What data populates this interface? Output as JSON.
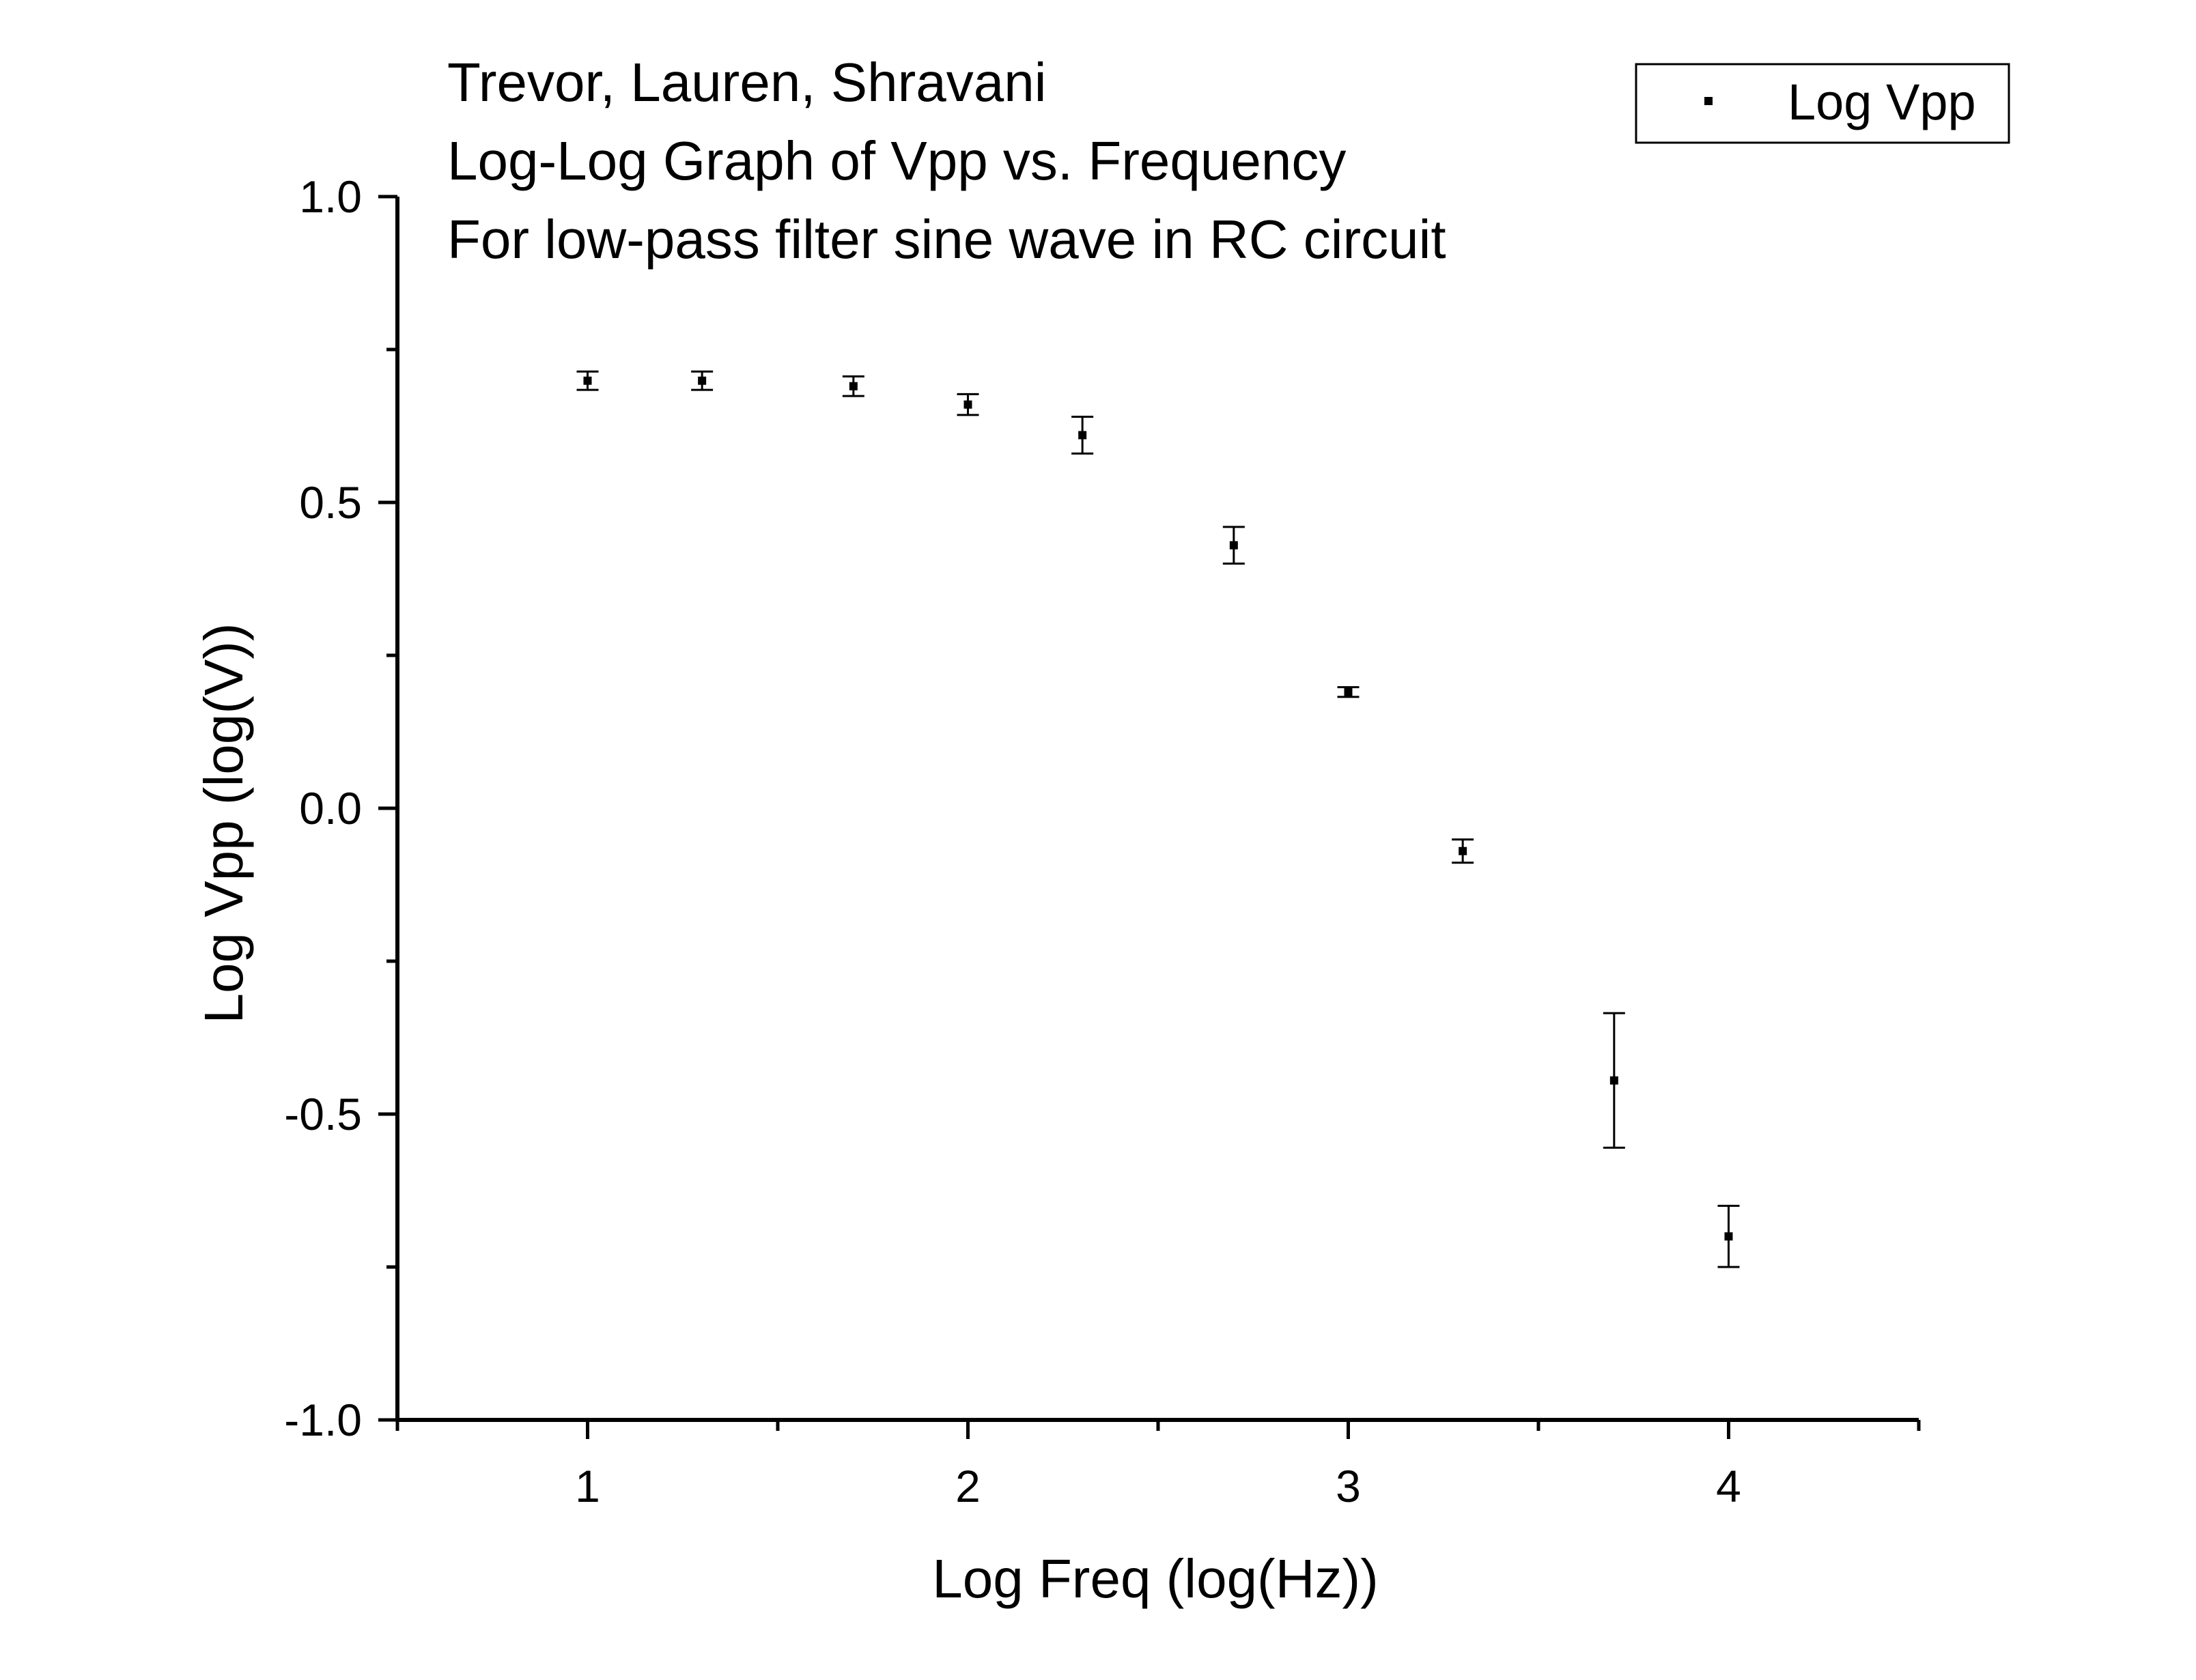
{
  "chart_data": {
    "type": "scatter",
    "title_lines": [
      "Trevor, Lauren, Shravani",
      "Log-Log Graph of Vpp vs. Frequency",
      "For low-pass filter sine wave in RC circuit"
    ],
    "xlabel": "Log Freq (log(Hz))",
    "ylabel": "Log Vpp (log(V))",
    "xlim": [
      0.5,
      4.5
    ],
    "ylim": [
      -1.0,
      1.0
    ],
    "x_ticks": [
      {
        "value": 1,
        "label": "1"
      },
      {
        "value": 2,
        "label": "2"
      },
      {
        "value": 3,
        "label": "3"
      },
      {
        "value": 4,
        "label": "4"
      }
    ],
    "x_minor_ticks": [
      0.5,
      1.5,
      2.5,
      3.5,
      4.5
    ],
    "y_ticks": [
      {
        "value": -1.0,
        "label": "-1.0"
      },
      {
        "value": -0.5,
        "label": "-0.5"
      },
      {
        "value": 0.0,
        "label": "0.0"
      },
      {
        "value": 0.5,
        "label": "0.5"
      },
      {
        "value": 1.0,
        "label": "1.0"
      }
    ],
    "y_minor_ticks": [
      -0.75,
      -0.25,
      0.25,
      0.75
    ],
    "grid": false,
    "legend": {
      "position": "top-right",
      "entries": [
        "Log Vpp"
      ]
    },
    "series": [
      {
        "name": "Log Vpp",
        "color": "#000000",
        "points": [
          {
            "x": 1.0,
            "y": 0.699,
            "err": 0.015
          },
          {
            "x": 1.301,
            "y": 0.699,
            "err": 0.015
          },
          {
            "x": 1.699,
            "y": 0.69,
            "err": 0.016
          },
          {
            "x": 2.0,
            "y": 0.66,
            "err": 0.017
          },
          {
            "x": 2.301,
            "y": 0.61,
            "err": 0.03
          },
          {
            "x": 2.699,
            "y": 0.43,
            "err": 0.03
          },
          {
            "x": 3.0,
            "y": 0.19,
            "err": 0.008
          },
          {
            "x": 3.301,
            "y": -0.07,
            "err": 0.019
          },
          {
            "x": 3.699,
            "y": -0.445,
            "err": 0.11
          },
          {
            "x": 4.0,
            "y": -0.7,
            "err": 0.05
          }
        ]
      }
    ]
  }
}
